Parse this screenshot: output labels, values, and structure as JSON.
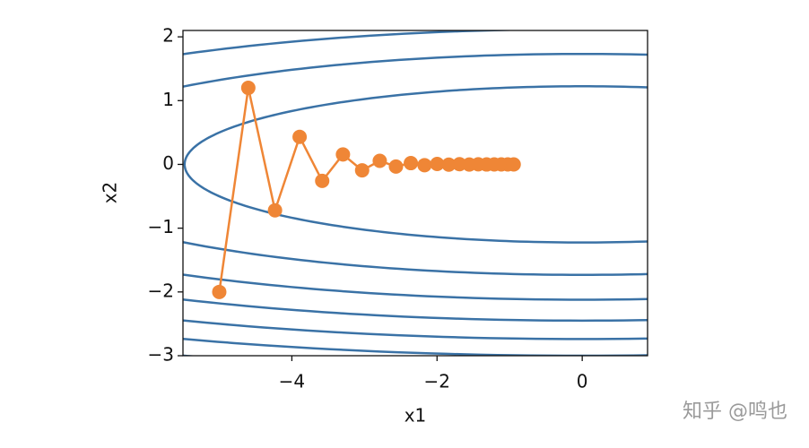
{
  "chart_data": {
    "type": "contour-trajectory",
    "xlabel": "x1",
    "ylabel": "x2",
    "xlim": [
      -5.5,
      0.9
    ],
    "ylim": [
      -3,
      2.1
    ],
    "xticks": [
      {
        "value": -4,
        "label": "−4"
      },
      {
        "value": -2,
        "label": "−2"
      },
      0
    ],
    "yticks": [
      {
        "value": -3,
        "label": "−3"
      },
      {
        "value": -2,
        "label": "−2"
      },
      {
        "value": -1,
        "label": "−1"
      },
      0,
      1,
      2
    ],
    "contour": {
      "coefficients": [
        0.1,
        2
      ],
      "levels": [
        3,
        6,
        9,
        12,
        15,
        18,
        21
      ],
      "color": "#3a72a6"
    },
    "trajectory": {
      "color": "#ef8636",
      "x": [
        -5,
        -4.6,
        -4.232,
        -3.893,
        -3.582,
        -3.296,
        -3.032,
        -2.789,
        -2.566,
        -2.361,
        -2.172,
        -1.998,
        -1.838,
        -1.691,
        -1.556,
        -1.432,
        -1.317,
        -1.212,
        -1.115,
        -1.026,
        -0.944
      ],
      "values": [
        -2,
        1.2,
        -0.72,
        0.432,
        -0.259,
        0.156,
        -0.093,
        0.056,
        -0.034,
        0.02,
        -0.012,
        0.007,
        -0.004,
        0.003,
        -0.002,
        0.001,
        -0.001,
        0,
        0,
        0,
        0
      ]
    }
  },
  "watermark": "知乎 @鸣也"
}
